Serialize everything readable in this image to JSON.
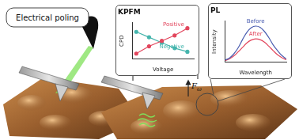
{
  "diagram": {
    "poling_label": "Electrical poling",
    "force_label": "F",
    "force_subscript": "ω"
  },
  "chart_data": [
    {
      "type": "line",
      "title": "KPFM",
      "x_label": "Voltage",
      "y_label": "CPD",
      "x": [
        0,
        1,
        2,
        3,
        4
      ],
      "xlim": [
        -0.3,
        4.5
      ],
      "ylim": [
        0,
        10
      ],
      "tick_labels": false,
      "grid": false,
      "series": [
        {
          "name": "Positive",
          "color": "#e2455c",
          "marker": "circle",
          "values": [
            1.5,
            3.5,
            5,
            6.5,
            8.5
          ]
        },
        {
          "name": "Negative",
          "color": "#45b5ad",
          "marker": "circle",
          "values": [
            7.5,
            6,
            4.5,
            3,
            2
          ]
        }
      ]
    },
    {
      "type": "line",
      "title": "PL",
      "x_label": "Wavelength",
      "y_label": "Intensity",
      "x": [
        0,
        1,
        2,
        3,
        4,
        5,
        6,
        7,
        8,
        9,
        10,
        11,
        12,
        13,
        14
      ],
      "xlim": [
        0,
        14
      ],
      "ylim": [
        0,
        10
      ],
      "tick_labels": false,
      "grid": false,
      "series": [
        {
          "name": "Before",
          "color": "#4a5db0",
          "values": [
            0.5,
            1,
            2,
            3.5,
            5.5,
            7.3,
            8.4,
            8.8,
            8.5,
            7.5,
            6,
            4.2,
            2.8,
            1.6,
            0.8
          ]
        },
        {
          "name": "After",
          "color": "#e2455c",
          "values": [
            0.4,
            0.8,
            1.5,
            2.5,
            3.6,
            4.7,
            5.4,
            5.7,
            5.5,
            4.9,
            3.9,
            2.8,
            1.8,
            1.1,
            0.6
          ]
        }
      ]
    }
  ]
}
